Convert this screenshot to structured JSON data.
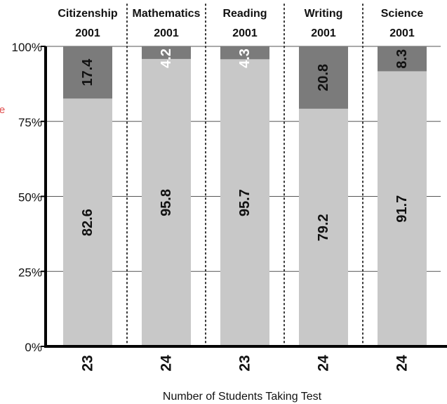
{
  "chart_data": {
    "type": "bar",
    "stacked": true,
    "categories": [
      "Citizenship",
      "Mathematics",
      "Reading",
      "Writing",
      "Science"
    ],
    "category_years": [
      "2001",
      "2001",
      "2001",
      "2001",
      "2001"
    ],
    "series": [
      {
        "values": [
          82.6,
          95.8,
          95.7,
          79.2,
          91.7
        ],
        "labels": [
          "82.6",
          "95.8",
          "95.7",
          "79.2",
          "91.7"
        ]
      },
      {
        "values": [
          17.4,
          4.2,
          4.3,
          20.8,
          8.3
        ],
        "labels": [
          "17.4",
          "4.2",
          "4.3",
          "20.8",
          "8.3"
        ]
      }
    ],
    "student_counts": [
      "23",
      "24",
      "23",
      "24",
      "24"
    ],
    "xlabel": "Number of Students Taking Test",
    "ylabel": "",
    "ylim": [
      0,
      100
    ],
    "yticks": [
      0,
      25,
      50,
      75,
      100
    ],
    "ytick_labels": [
      "0%",
      "25%",
      "50%",
      "75%",
      "100%"
    ],
    "grid": true,
    "stray_glyph": "e",
    "colors": {
      "lower": "#c8c8c8",
      "upper": "#7b7b7b",
      "lower_text": "#111111",
      "upper_text_dark": "#111111",
      "upper_text_light": "#ffffff",
      "axis": "#000000",
      "grid": "#555555",
      "divider": "#333333",
      "stray": "#e05050"
    }
  }
}
